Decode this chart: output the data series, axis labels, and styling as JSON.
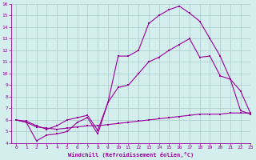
{
  "line1_x": [
    0,
    1,
    2,
    3,
    4,
    5,
    6,
    7,
    8,
    9,
    10,
    11,
    12,
    13,
    14,
    15,
    16,
    17,
    18,
    19,
    20,
    21,
    22,
    23
  ],
  "line1_y": [
    6.0,
    5.8,
    4.2,
    4.7,
    4.8,
    5.0,
    5.8,
    6.2,
    4.8,
    7.5,
    11.5,
    11.5,
    12.0,
    14.3,
    15.0,
    15.5,
    15.8,
    15.2,
    14.5,
    13.0,
    11.5,
    9.5,
    8.5,
    6.5
  ],
  "line2_x": [
    0,
    1,
    2,
    3,
    4,
    5,
    6,
    7,
    8,
    9,
    10,
    11,
    12,
    13,
    14,
    15,
    16,
    17,
    18,
    19,
    20,
    21,
    22,
    23
  ],
  "line2_y": [
    6.0,
    5.9,
    5.5,
    5.2,
    5.5,
    6.0,
    6.2,
    6.4,
    5.1,
    7.5,
    8.8,
    9.0,
    10.0,
    11.0,
    11.4,
    12.0,
    12.5,
    13.0,
    11.4,
    11.5,
    9.8,
    9.5,
    6.8,
    6.5
  ],
  "line3_x": [
    0,
    1,
    2,
    3,
    4,
    5,
    6,
    7,
    8,
    9,
    10,
    11,
    12,
    13,
    14,
    15,
    16,
    17,
    18,
    19,
    20,
    21,
    22,
    23
  ],
  "line3_y": [
    6.0,
    5.8,
    5.4,
    5.3,
    5.2,
    5.3,
    5.4,
    5.5,
    5.5,
    5.6,
    5.7,
    5.8,
    5.9,
    6.0,
    6.1,
    6.2,
    6.3,
    6.4,
    6.5,
    6.5,
    6.5,
    6.6,
    6.6,
    6.6
  ],
  "color": "#990099",
  "bg_color": "#d4eeee",
  "grid_color": "#b0d0d0",
  "xlabel": "Windchill (Refroidissement éolien,°C)",
  "xlim": [
    -0.5,
    23
  ],
  "ylim": [
    4,
    16
  ],
  "xticks": [
    0,
    1,
    2,
    3,
    4,
    5,
    6,
    7,
    8,
    9,
    10,
    11,
    12,
    13,
    14,
    15,
    16,
    17,
    18,
    19,
    20,
    21,
    22,
    23
  ],
  "yticks": [
    4,
    5,
    6,
    7,
    8,
    9,
    10,
    11,
    12,
    13,
    14,
    15,
    16
  ]
}
